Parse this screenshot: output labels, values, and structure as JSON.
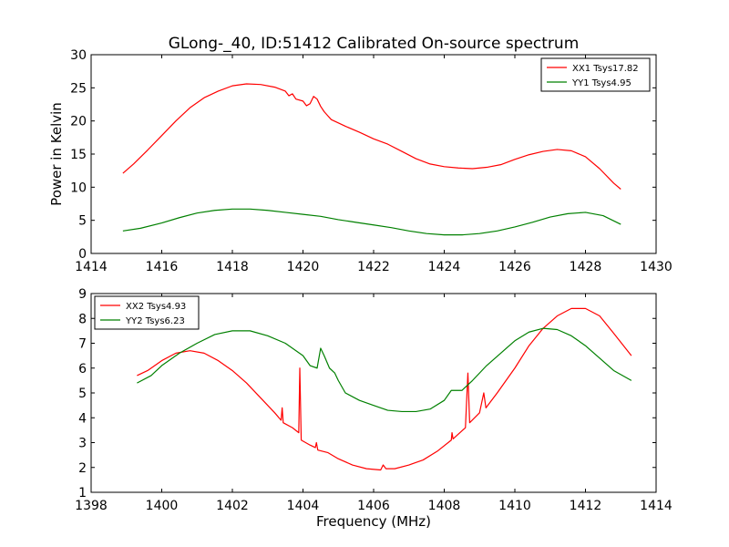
{
  "figure": {
    "title": "GLong-_40, ID:51412 Calibrated On-source spectrum"
  },
  "colors": {
    "red": "#ff0000",
    "green": "#008000",
    "axis": "#000000"
  },
  "chart_data": [
    {
      "type": "line",
      "title": "GLong-_40, ID:51412 Calibrated On-source spectrum",
      "xlabel": "",
      "ylabel": "Power in Kelvin",
      "xlim": [
        1414,
        1430
      ],
      "ylim": [
        0,
        30
      ],
      "xticks": [
        1414,
        1416,
        1418,
        1420,
        1422,
        1424,
        1426,
        1428,
        1430
      ],
      "yticks": [
        0,
        5,
        10,
        15,
        20,
        25,
        30
      ],
      "legend_position": "top-right",
      "series": [
        {
          "name": "XX1 Tsys17.82",
          "color": "#ff0000",
          "points": [
            [
              1414.9,
              12.1
            ],
            [
              1415.2,
              13.5
            ],
            [
              1415.6,
              15.6
            ],
            [
              1416.0,
              17.8
            ],
            [
              1416.4,
              20.0
            ],
            [
              1416.8,
              22.0
            ],
            [
              1417.2,
              23.5
            ],
            [
              1417.6,
              24.5
            ],
            [
              1418.0,
              25.3
            ],
            [
              1418.4,
              25.6
            ],
            [
              1418.8,
              25.5
            ],
            [
              1419.2,
              25.1
            ],
            [
              1419.5,
              24.5
            ],
            [
              1419.6,
              23.8
            ],
            [
              1419.7,
              24.1
            ],
            [
              1419.8,
              23.3
            ],
            [
              1420.0,
              23.0
            ],
            [
              1420.1,
              22.3
            ],
            [
              1420.2,
              22.6
            ],
            [
              1420.3,
              23.7
            ],
            [
              1420.4,
              23.3
            ],
            [
              1420.5,
              22.2
            ],
            [
              1420.6,
              21.4
            ],
            [
              1420.7,
              20.8
            ],
            [
              1420.8,
              20.2
            ],
            [
              1421.2,
              19.2
            ],
            [
              1421.6,
              18.3
            ],
            [
              1422.0,
              17.3
            ],
            [
              1422.4,
              16.5
            ],
            [
              1422.8,
              15.4
            ],
            [
              1423.2,
              14.3
            ],
            [
              1423.6,
              13.5
            ],
            [
              1424.0,
              13.1
            ],
            [
              1424.4,
              12.9
            ],
            [
              1424.8,
              12.8
            ],
            [
              1425.2,
              13.0
            ],
            [
              1425.6,
              13.4
            ],
            [
              1426.0,
              14.2
            ],
            [
              1426.4,
              14.9
            ],
            [
              1426.8,
              15.4
            ],
            [
              1427.2,
              15.7
            ],
            [
              1427.6,
              15.5
            ],
            [
              1428.0,
              14.6
            ],
            [
              1428.4,
              12.8
            ],
            [
              1428.8,
              10.6
            ],
            [
              1429.0,
              9.7
            ]
          ]
        },
        {
          "name": "YY1 Tsys4.95",
          "color": "#008000",
          "points": [
            [
              1414.9,
              3.4
            ],
            [
              1415.4,
              3.8
            ],
            [
              1416.0,
              4.6
            ],
            [
              1416.5,
              5.4
            ],
            [
              1417.0,
              6.1
            ],
            [
              1417.5,
              6.5
            ],
            [
              1418.0,
              6.7
            ],
            [
              1418.5,
              6.7
            ],
            [
              1419.0,
              6.5
            ],
            [
              1419.5,
              6.2
            ],
            [
              1420.0,
              5.9
            ],
            [
              1420.5,
              5.6
            ],
            [
              1421.0,
              5.1
            ],
            [
              1421.5,
              4.7
            ],
            [
              1422.0,
              4.3
            ],
            [
              1422.5,
              3.9
            ],
            [
              1423.0,
              3.4
            ],
            [
              1423.5,
              3.0
            ],
            [
              1424.0,
              2.8
            ],
            [
              1424.5,
              2.8
            ],
            [
              1425.0,
              3.0
            ],
            [
              1425.5,
              3.4
            ],
            [
              1426.0,
              4.0
            ],
            [
              1426.5,
              4.7
            ],
            [
              1427.0,
              5.5
            ],
            [
              1427.5,
              6.0
            ],
            [
              1428.0,
              6.2
            ],
            [
              1428.5,
              5.7
            ],
            [
              1429.0,
              4.4
            ]
          ]
        }
      ]
    },
    {
      "type": "line",
      "title": "",
      "xlabel": "Frequency (MHz)",
      "ylabel": "",
      "xlim": [
        1398,
        1414
      ],
      "ylim": [
        1,
        9
      ],
      "xticks": [
        1398,
        1400,
        1402,
        1404,
        1406,
        1408,
        1410,
        1412,
        1414
      ],
      "yticks": [
        1,
        2,
        3,
        4,
        5,
        6,
        7,
        8,
        9
      ],
      "legend_position": "top-left",
      "series": [
        {
          "name": "XX2 Tsys4.93",
          "color": "#ff0000",
          "points": [
            [
              1399.3,
              5.7
            ],
            [
              1399.6,
              5.9
            ],
            [
              1400.0,
              6.3
            ],
            [
              1400.4,
              6.6
            ],
            [
              1400.8,
              6.7
            ],
            [
              1401.2,
              6.6
            ],
            [
              1401.6,
              6.3
            ],
            [
              1402.0,
              5.9
            ],
            [
              1402.4,
              5.4
            ],
            [
              1402.8,
              4.8
            ],
            [
              1403.2,
              4.2
            ],
            [
              1403.38,
              3.9
            ],
            [
              1403.41,
              4.4
            ],
            [
              1403.44,
              3.8
            ],
            [
              1403.7,
              3.6
            ],
            [
              1403.88,
              3.4
            ],
            [
              1403.91,
              6.0
            ],
            [
              1403.95,
              3.1
            ],
            [
              1404.2,
              2.9
            ],
            [
              1404.35,
              2.8
            ],
            [
              1404.38,
              3.0
            ],
            [
              1404.42,
              2.7
            ],
            [
              1404.7,
              2.6
            ],
            [
              1405.0,
              2.35
            ],
            [
              1405.4,
              2.1
            ],
            [
              1405.8,
              1.95
            ],
            [
              1406.2,
              1.9
            ],
            [
              1406.27,
              2.1
            ],
            [
              1406.35,
              1.95
            ],
            [
              1406.6,
              1.95
            ],
            [
              1407.0,
              2.1
            ],
            [
              1407.4,
              2.3
            ],
            [
              1407.8,
              2.65
            ],
            [
              1408.2,
              3.1
            ],
            [
              1408.22,
              3.4
            ],
            [
              1408.25,
              3.15
            ],
            [
              1408.6,
              3.6
            ],
            [
              1408.67,
              5.8
            ],
            [
              1408.72,
              3.8
            ],
            [
              1409.0,
              4.2
            ],
            [
              1409.12,
              5.0
            ],
            [
              1409.18,
              4.4
            ],
            [
              1409.5,
              5.0
            ],
            [
              1410.0,
              6.0
            ],
            [
              1410.4,
              6.9
            ],
            [
              1410.8,
              7.6
            ],
            [
              1411.2,
              8.1
            ],
            [
              1411.6,
              8.4
            ],
            [
              1412.0,
              8.4
            ],
            [
              1412.4,
              8.1
            ],
            [
              1412.8,
              7.4
            ],
            [
              1413.3,
              6.5
            ]
          ]
        },
        {
          "name": "YY2 Tsys6.23",
          "color": "#008000",
          "points": [
            [
              1399.3,
              5.4
            ],
            [
              1399.7,
              5.7
            ],
            [
              1400.0,
              6.1
            ],
            [
              1400.5,
              6.6
            ],
            [
              1401.0,
              7.0
            ],
            [
              1401.5,
              7.35
            ],
            [
              1402.0,
              7.5
            ],
            [
              1402.5,
              7.5
            ],
            [
              1403.0,
              7.3
            ],
            [
              1403.5,
              7.0
            ],
            [
              1404.0,
              6.5
            ],
            [
              1404.2,
              6.1
            ],
            [
              1404.4,
              6.0
            ],
            [
              1404.5,
              6.8
            ],
            [
              1404.6,
              6.5
            ],
            [
              1404.75,
              6.0
            ],
            [
              1404.9,
              5.8
            ],
            [
              1405.0,
              5.5
            ],
            [
              1405.2,
              5.0
            ],
            [
              1405.6,
              4.7
            ],
            [
              1406.0,
              4.5
            ],
            [
              1406.4,
              4.3
            ],
            [
              1406.8,
              4.25
            ],
            [
              1407.2,
              4.25
            ],
            [
              1407.6,
              4.35
            ],
            [
              1408.0,
              4.7
            ],
            [
              1408.2,
              5.1
            ],
            [
              1408.5,
              5.1
            ],
            [
              1408.8,
              5.5
            ],
            [
              1409.2,
              6.1
            ],
            [
              1409.6,
              6.6
            ],
            [
              1410.0,
              7.1
            ],
            [
              1410.4,
              7.45
            ],
            [
              1410.8,
              7.6
            ],
            [
              1411.2,
              7.55
            ],
            [
              1411.6,
              7.3
            ],
            [
              1412.0,
              6.9
            ],
            [
              1412.4,
              6.4
            ],
            [
              1412.8,
              5.9
            ],
            [
              1413.3,
              5.5
            ]
          ]
        }
      ]
    }
  ]
}
